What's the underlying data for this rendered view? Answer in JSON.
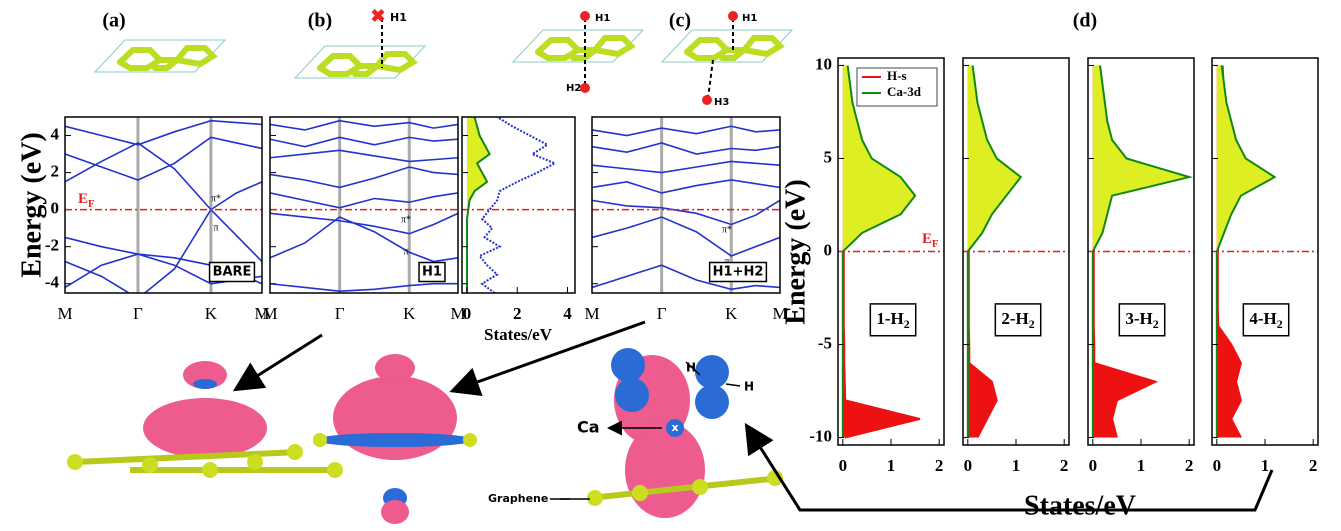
{
  "panel_labels": [
    "(a)",
    "(b)",
    "(c)",
    "(d)"
  ],
  "illustrations": {
    "top_labels": [
      "H1",
      "H1",
      "H2",
      "H1",
      "H3"
    ],
    "bottom_labels": [
      "H",
      "H",
      "Ca",
      "Graphene"
    ],
    "atom_marker": "x"
  },
  "chart_data": [
    {
      "type": "band",
      "ylabel": "Energy (eV)",
      "ef_label": "E",
      "ef_sub": "F",
      "box_label": "BARE",
      "annotations": [
        "π*",
        "π"
      ],
      "x": [
        0,
        0.5,
        1,
        1.5,
        2,
        2.35,
        2.7
      ],
      "xlim": [
        0,
        2.7
      ],
      "xticks": [
        {
          "value": 0,
          "label": "M"
        },
        {
          "value": 1,
          "label": "Γ"
        },
        {
          "value": 2,
          "label": "K"
        },
        {
          "value": 2.7,
          "label": "M"
        }
      ],
      "ylim": [
        -4.5,
        5
      ],
      "yticks": [
        -4,
        -2,
        0,
        2,
        4
      ],
      "reference_line": 0,
      "reference_color": "#e02020",
      "series": [
        {
          "color": "#2233cc",
          "values": [
            -2.8,
            -3.6,
            -4.8,
            -3.2,
            0,
            -1.4,
            -2.8
          ]
        },
        {
          "color": "#2233cc",
          "values": [
            1.5,
            2.6,
            3.6,
            2.2,
            0,
            0.9,
            1.5
          ]
        },
        {
          "color": "#2233cc",
          "values": [
            -1.5,
            -2.0,
            -2.4,
            -3.0,
            -4.0,
            -3.8,
            -3.6
          ]
        },
        {
          "color": "#2233cc",
          "values": [
            3.0,
            2.3,
            1.6,
            2.5,
            3.9,
            3.6,
            3.3
          ]
        },
        {
          "color": "#2233cc",
          "values": [
            4.5,
            4.0,
            3.5,
            4.2,
            4.8,
            4.7,
            4.6
          ]
        },
        {
          "color": "#2233cc",
          "values": [
            -4.2,
            -3.0,
            -2.4,
            -2.6,
            -3.0,
            -3.4,
            -4.0
          ]
        }
      ]
    },
    {
      "type": "band",
      "box_label": "H1",
      "annotations": [
        "π*",
        "π"
      ],
      "show_ytick_labels": false,
      "x": [
        0,
        0.5,
        1,
        1.5,
        2,
        2.35,
        2.7
      ],
      "xlim": [
        0,
        2.7
      ],
      "xticks": [
        {
          "value": 0,
          "label": "M"
        },
        {
          "value": 1,
          "label": "Γ"
        },
        {
          "value": 2,
          "label": "K"
        },
        {
          "value": 2.7,
          "label": "M"
        }
      ],
      "ylim": [
        -4.5,
        5
      ],
      "yticks": [
        -4,
        -2,
        0,
        2,
        4
      ],
      "reference_line": 0,
      "reference_color": "#e02020",
      "series": [
        {
          "color": "#2233cc",
          "values": [
            -4.0,
            -4.2,
            -4.4,
            -4.3,
            -4.1,
            -4.0,
            -4.0
          ]
        },
        {
          "color": "#2233cc",
          "values": [
            -2.6,
            -1.8,
            -0.4,
            -1.2,
            -2.3,
            -2.8,
            -2.6
          ]
        },
        {
          "color": "#2233cc",
          "values": [
            -0.2,
            -0.4,
            -0.6,
            -0.9,
            -1.3,
            -0.8,
            -0.2
          ]
        },
        {
          "color": "#2233cc",
          "values": [
            0.9,
            0.5,
            0.1,
            0.6,
            0.4,
            0.7,
            0.9
          ]
        },
        {
          "color": "#2233cc",
          "values": [
            1.9,
            1.6,
            1.2,
            1.7,
            2.3,
            2.0,
            1.9
          ]
        },
        {
          "color": "#2233cc",
          "values": [
            2.8,
            3.0,
            3.2,
            2.9,
            2.6,
            2.7,
            2.8
          ]
        },
        {
          "color": "#2233cc",
          "values": [
            3.8,
            3.4,
            3.9,
            3.5,
            3.9,
            3.7,
            3.8
          ]
        },
        {
          "color": "#2233cc",
          "values": [
            4.6,
            4.3,
            4.8,
            4.5,
            4.7,
            4.4,
            4.6
          ]
        }
      ]
    },
    {
      "type": "dos",
      "xlabel": "States/eV",
      "show_ytick_labels": false,
      "y": [
        -4.5,
        -4,
        -3.5,
        -3,
        -2.5,
        -2,
        -1.5,
        -1,
        -0.5,
        0,
        0.5,
        1,
        1.5,
        2,
        2.5,
        3,
        3.5,
        4,
        4.5,
        5
      ],
      "xlim": [
        -0.2,
        4.3
      ],
      "xticks": [
        0,
        2,
        4
      ],
      "ylim": [
        -4.5,
        5
      ],
      "yticks": [
        -4,
        -2,
        0,
        2,
        4
      ],
      "reference_line": 0,
      "reference_color": "#e02020",
      "series": [
        {
          "color": "#2233cc",
          "style": "dotted",
          "values": [
            1.1,
            0.6,
            1.2,
            0.8,
            0.5,
            1.3,
            0.7,
            1.0,
            0.6,
            0.9,
            1.2,
            1.3,
            2.0,
            2.8,
            3.5,
            2.6,
            3.2,
            2.5,
            1.8,
            1.2
          ]
        },
        {
          "color": "#118811",
          "fill": "#ddee22",
          "values": [
            0,
            0,
            0,
            0,
            0,
            0,
            0,
            0,
            0,
            0.05,
            0.1,
            0.3,
            0.8,
            0.6,
            0.4,
            0.9,
            0.7,
            0.5,
            0.4,
            0.3
          ]
        }
      ]
    },
    {
      "type": "band",
      "box_label": "H1+H2",
      "annotations": [
        "π*",
        "π"
      ],
      "show_ytick_labels": false,
      "x": [
        0,
        0.5,
        1,
        1.5,
        2,
        2.35,
        2.7
      ],
      "xlim": [
        0,
        2.7
      ],
      "xticks": [
        {
          "value": 0,
          "label": "M"
        },
        {
          "value": 1,
          "label": "Γ"
        },
        {
          "value": 2,
          "label": "K"
        },
        {
          "value": 2.7,
          "label": "M"
        }
      ],
      "ylim": [
        -4.5,
        5
      ],
      "yticks": [
        -4,
        -2,
        0,
        2,
        4
      ],
      "reference_line": 0,
      "reference_color": "#e02020",
      "series": [
        {
          "color": "#2233cc",
          "values": [
            -4.2,
            -3.6,
            -3.0,
            -3.8,
            -4.3,
            -4.1,
            -4.2
          ]
        },
        {
          "color": "#2233cc",
          "values": [
            -1.5,
            -1.0,
            -0.4,
            -1.2,
            -2.5,
            -2.0,
            -1.5
          ]
        },
        {
          "color": "#2233cc",
          "values": [
            0.5,
            0.2,
            0.1,
            -0.2,
            -0.8,
            -0.3,
            0.5
          ]
        },
        {
          "color": "#2233cc",
          "values": [
            1.2,
            1.5,
            0.9,
            1.3,
            1.6,
            1.4,
            1.2
          ]
        },
        {
          "color": "#2233cc",
          "values": [
            2.4,
            2.2,
            2.0,
            2.3,
            2.6,
            2.5,
            2.4
          ]
        },
        {
          "color": "#2233cc",
          "values": [
            3.4,
            3.1,
            3.6,
            3.0,
            3.3,
            3.2,
            3.4
          ]
        },
        {
          "color": "#2233cc",
          "values": [
            4.3,
            4.0,
            4.4,
            4.1,
            4.5,
            4.2,
            4.3
          ]
        }
      ]
    },
    {
      "type": "dos",
      "ylabel": "Energy (eV)",
      "xlabel": "States/eV",
      "box_label": "1-H",
      "box_sub": "2",
      "y": [
        -10,
        -9,
        -8,
        -7,
        -6,
        -5,
        -4,
        -3,
        -2,
        -1,
        0,
        1,
        2,
        3,
        4,
        5,
        6,
        7,
        8,
        9,
        10
      ],
      "xlim": [
        -0.1,
        2.1
      ],
      "xticks": [
        0,
        1,
        2
      ],
      "ylim": [
        -10.4,
        10.4
      ],
      "yticks": [
        -10,
        -5,
        0,
        5,
        10
      ],
      "reference_line": 0,
      "reference_color": "#e02020",
      "series": [
        {
          "name": "H-s",
          "color": "#ee1111",
          "fill": "#ee1111",
          "values": [
            0.05,
            1.6,
            0.05,
            0.04,
            0.03,
            0.03,
            0.02,
            0.02,
            0.02,
            0.02,
            0.02,
            0.03,
            0.04,
            0.05,
            0.05,
            0.05,
            0.05,
            0.06,
            0.06,
            0.06,
            0.06
          ]
        },
        {
          "name": "Ca-3d",
          "color": "#118811",
          "fill": "#ddee22",
          "values": [
            0,
            0,
            0,
            0,
            0,
            0,
            0,
            0,
            0,
            0,
            0,
            0.4,
            1.2,
            1.5,
            1.2,
            0.6,
            0.4,
            0.3,
            0.2,
            0.15,
            0.1
          ]
        }
      ]
    },
    {
      "type": "dos",
      "box_label": "2-H",
      "box_sub": "2",
      "ef_label": "E",
      "ef_sub": "F",
      "show_ytick_labels": false,
      "y": [
        -10,
        -9,
        -8,
        -7,
        -6,
        -5,
        -4,
        -3,
        -2,
        -1,
        0,
        1,
        2,
        3,
        4,
        5,
        6,
        7,
        8,
        9,
        10
      ],
      "xlim": [
        -0.1,
        2.1
      ],
      "xticks": [
        0,
        1,
        2
      ],
      "ylim": [
        -10.4,
        10.4
      ],
      "yticks": [
        -10,
        -5,
        0,
        5,
        10
      ],
      "reference_line": 0,
      "reference_color": "#e02020",
      "series": [
        {
          "color": "#ee1111",
          "fill": "#ee1111",
          "values": [
            0.2,
            0.4,
            0.6,
            0.5,
            0.03,
            0.03,
            0.02,
            0.02,
            0.02,
            0.02,
            0.02,
            0.04,
            0.05,
            0.06,
            0.08,
            0.07,
            0.06,
            0.08,
            0.07,
            0.08,
            0.06
          ]
        },
        {
          "color": "#118811",
          "fill": "#ddee22",
          "values": [
            0,
            0,
            0,
            0,
            0,
            0,
            0,
            0,
            0,
            0,
            0,
            0.3,
            0.5,
            0.8,
            1.1,
            0.6,
            0.4,
            0.3,
            0.2,
            0.15,
            0.1
          ]
        }
      ]
    },
    {
      "type": "dos",
      "box_label": "3-H",
      "box_sub": "2",
      "show_ytick_labels": false,
      "y": [
        -10,
        -9,
        -8,
        -7,
        -6,
        -5,
        -4,
        -3,
        -2,
        -1,
        0,
        1,
        2,
        3,
        4,
        5,
        6,
        7,
        8,
        9,
        10
      ],
      "xlim": [
        -0.1,
        2.1
      ],
      "xticks": [
        0,
        1,
        2
      ],
      "ylim": [
        -10.4,
        10.4
      ],
      "yticks": [
        -10,
        -5,
        0,
        5,
        10
      ],
      "reference_line": 0,
      "reference_color": "#e02020",
      "series": [
        {
          "color": "#ee1111",
          "fill": "#ee1111",
          "values": [
            0.5,
            0.4,
            0.5,
            1.3,
            0.03,
            0.03,
            0.02,
            0.02,
            0.02,
            0.02,
            0.02,
            0.05,
            0.07,
            0.08,
            0.1,
            0.09,
            0.1,
            0.12,
            0.1,
            0.12,
            0.1
          ]
        },
        {
          "color": "#118811",
          "fill": "#ddee22",
          "values": [
            0,
            0,
            0,
            0,
            0,
            0,
            0,
            0,
            0,
            0,
            0,
            0.2,
            0.3,
            0.4,
            2.0,
            0.7,
            0.4,
            0.3,
            0.25,
            0.2,
            0.15
          ]
        }
      ]
    },
    {
      "type": "dos",
      "box_label": "4-H",
      "box_sub": "2",
      "show_ytick_labels": false,
      "y": [
        -10,
        -9,
        -8,
        -7,
        -6,
        -5,
        -4,
        -3,
        -2,
        -1,
        0,
        1,
        2,
        3,
        4,
        5,
        6,
        7,
        8,
        9,
        10
      ],
      "xlim": [
        -0.1,
        2.1
      ],
      "xticks": [
        0,
        1,
        2
      ],
      "ylim": [
        -10.4,
        10.4
      ],
      "yticks": [
        -10,
        -5,
        0,
        5,
        10
      ],
      "reference_line": 0,
      "reference_color": "#e02020",
      "series": [
        {
          "color": "#ee1111",
          "fill": "#ee1111",
          "values": [
            0.5,
            0.3,
            0.5,
            0.4,
            0.5,
            0.3,
            0.03,
            0.02,
            0.02,
            0.02,
            0.02,
            0.06,
            0.08,
            0.1,
            0.12,
            0.1,
            0.12,
            0.14,
            0.12,
            0.14,
            0.12
          ]
        },
        {
          "color": "#118811",
          "fill": "#ddee22",
          "values": [
            0,
            0,
            0,
            0,
            0,
            0,
            0,
            0,
            0,
            0,
            0,
            0.15,
            0.3,
            0.5,
            1.2,
            0.6,
            0.4,
            0.3,
            0.2,
            0.15,
            0.1
          ]
        }
      ]
    }
  ]
}
